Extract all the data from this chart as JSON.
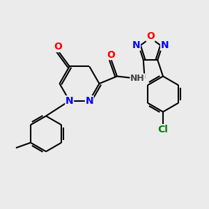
{
  "background_color": "#ebebeb",
  "bond_color": "#000000",
  "atom_colors": {
    "N": "#0000ff",
    "O": "#ff0000",
    "Cl": "#008000",
    "H": "#444444",
    "C": "#000000"
  },
  "figsize": [
    3.0,
    3.0
  ],
  "dpi": 100,
  "lw": 1.5,
  "fontsize": 9.5
}
